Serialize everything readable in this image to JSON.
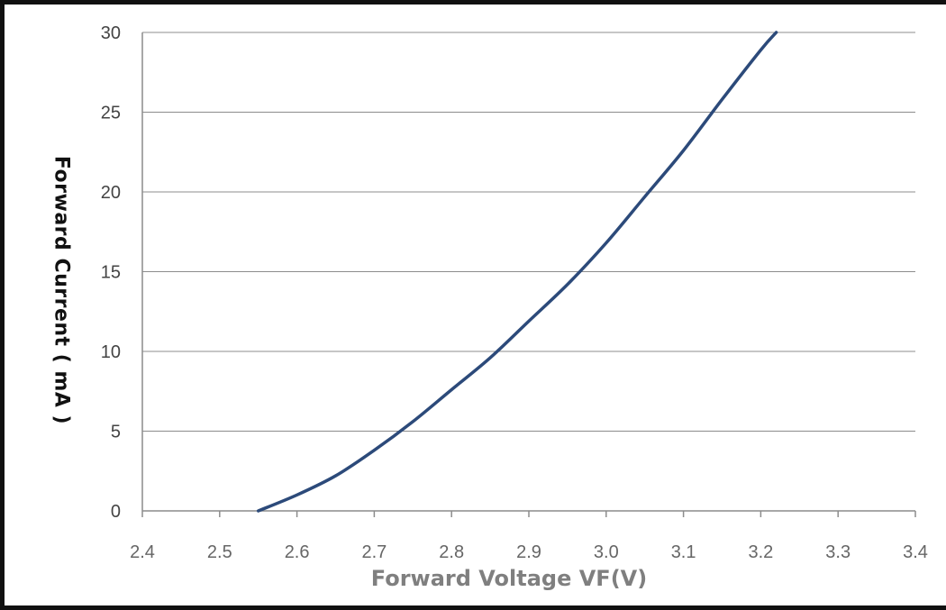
{
  "chart_data": {
    "type": "line",
    "title": "",
    "xlabel": "Forward Voltage VF(V)",
    "ylabel": "Forward Current ( mA )",
    "xlim": [
      2.4,
      3.4
    ],
    "ylim": [
      0,
      30
    ],
    "xticks": [
      "2.4",
      "2.5",
      "2.6",
      "2.7",
      "2.8",
      "2.9",
      "3.0",
      "3.1",
      "3.2",
      "3.3",
      "3.4"
    ],
    "yticks": [
      "0",
      "5",
      "10",
      "15",
      "20",
      "25",
      "30"
    ],
    "grid": "horizontal",
    "legend": "none",
    "series": [
      {
        "color": "#2c4a7a",
        "x": [
          2.55,
          2.6,
          2.65,
          2.7,
          2.75,
          2.8,
          2.85,
          2.9,
          2.95,
          3.0,
          3.05,
          3.1,
          3.15,
          3.2,
          3.22
        ],
        "y": [
          0,
          1.0,
          2.2,
          3.8,
          5.6,
          7.6,
          9.6,
          11.9,
          14.2,
          16.8,
          19.7,
          22.6,
          25.8,
          28.9,
          30
        ]
      }
    ]
  }
}
